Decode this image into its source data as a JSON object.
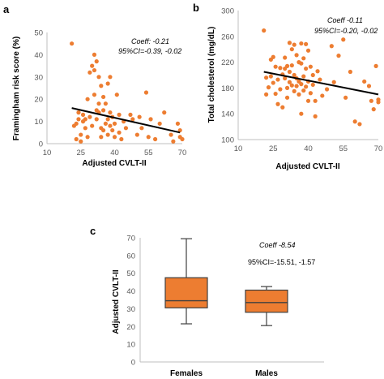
{
  "colors": {
    "point": "#ED7D31",
    "box_fill": "#ED7D31",
    "box_stroke": "#404040",
    "trend": "#000000"
  },
  "chart_data": [
    {
      "panel_label": "a",
      "type": "scatter",
      "xlabel": "Adjusted CVLT-II",
      "ylabel": "Framingham risk score (%)",
      "xlim": [
        10,
        70
      ],
      "ylim": [
        0,
        50
      ],
      "xticks": [
        10,
        25,
        40,
        55,
        70
      ],
      "yticks": [
        0,
        10,
        20,
        30,
        40,
        50
      ],
      "annotation": [
        "Coeff: -0.21",
        "95%CI=-0.39, -0.02"
      ],
      "trendline": {
        "x": [
          21,
          69
        ],
        "y": [
          16,
          5
        ]
      },
      "points": [
        [
          21,
          45
        ],
        [
          22,
          8
        ],
        [
          23,
          2
        ],
        [
          23,
          9
        ],
        [
          24,
          14
        ],
        [
          24,
          11
        ],
        [
          25,
          4
        ],
        [
          25,
          1
        ],
        [
          26,
          10
        ],
        [
          26,
          13
        ],
        [
          27,
          7
        ],
        [
          27,
          11
        ],
        [
          28,
          20
        ],
        [
          28,
          3
        ],
        [
          29,
          32
        ],
        [
          29,
          12
        ],
        [
          30,
          35
        ],
        [
          30,
          8
        ],
        [
          31,
          40
        ],
        [
          31,
          33
        ],
        [
          31,
          22
        ],
        [
          32,
          37
        ],
        [
          32,
          15
        ],
        [
          32,
          11
        ],
        [
          33,
          30
        ],
        [
          33,
          18
        ],
        [
          33,
          14
        ],
        [
          34,
          26
        ],
        [
          34,
          7
        ],
        [
          34,
          3
        ],
        [
          35,
          21
        ],
        [
          35,
          15
        ],
        [
          35,
          6
        ],
        [
          36,
          18
        ],
        [
          36,
          9
        ],
        [
          37,
          27
        ],
        [
          37,
          11
        ],
        [
          37,
          4
        ],
        [
          38,
          30
        ],
        [
          38,
          14
        ],
        [
          38,
          8
        ],
        [
          39,
          6
        ],
        [
          39,
          12
        ],
        [
          40,
          3
        ],
        [
          40,
          9
        ],
        [
          41,
          22
        ],
        [
          42,
          13
        ],
        [
          42,
          5
        ],
        [
          43,
          2
        ],
        [
          44,
          10
        ],
        [
          45,
          7
        ],
        [
          47,
          13
        ],
        [
          48,
          11
        ],
        [
          50,
          4
        ],
        [
          51,
          12
        ],
        [
          52,
          7
        ],
        [
          54,
          23
        ],
        [
          55,
          3
        ],
        [
          56,
          11
        ],
        [
          58,
          2
        ],
        [
          60,
          9
        ],
        [
          62,
          14
        ],
        [
          65,
          4
        ],
        [
          66,
          1
        ],
        [
          68,
          9
        ],
        [
          69,
          6
        ],
        [
          69,
          3
        ],
        [
          70,
          2
        ]
      ]
    },
    {
      "panel_label": "b",
      "type": "scatter",
      "xlabel": "Adjusted CVLT-II",
      "ylabel": "Total cholesterol (mg/dL)",
      "xlim": [
        10,
        70
      ],
      "ylim": [
        100,
        300
      ],
      "xticks": [
        10,
        25,
        40,
        55,
        70
      ],
      "yticks": [
        100,
        140,
        180,
        220,
        260,
        300
      ],
      "annotation": [
        "Coeff -0.11",
        "95%CI=-0.20, -0.02"
      ],
      "trendline": {
        "x": [
          21,
          70
        ],
        "y": [
          205,
          170
        ]
      },
      "points": [
        [
          21,
          269
        ],
        [
          22,
          196
        ],
        [
          22,
          170
        ],
        [
          23,
          181
        ],
        [
          24,
          224
        ],
        [
          24,
          198
        ],
        [
          25,
          228
        ],
        [
          25,
          188
        ],
        [
          26,
          213
        ],
        [
          26,
          171
        ],
        [
          27,
          155
        ],
        [
          27,
          193
        ],
        [
          28,
          211
        ],
        [
          28,
          178
        ],
        [
          29,
          201
        ],
        [
          29,
          150
        ],
        [
          30,
          227
        ],
        [
          30,
          210
        ],
        [
          30,
          195
        ],
        [
          31,
          214
        ],
        [
          31,
          180
        ],
        [
          31,
          165
        ],
        [
          32,
          250
        ],
        [
          32,
          205
        ],
        [
          32,
          189
        ],
        [
          33,
          240
        ],
        [
          33,
          215
        ],
        [
          33,
          184
        ],
        [
          34,
          247
        ],
        [
          34,
          200
        ],
        [
          34,
          175
        ],
        [
          35,
          231
        ],
        [
          35,
          195
        ],
        [
          35,
          183
        ],
        [
          36,
          220
        ],
        [
          36,
          190
        ],
        [
          36,
          170
        ],
        [
          37,
          249
        ],
        [
          37,
          218
        ],
        [
          37,
          186
        ],
        [
          37,
          140
        ],
        [
          38,
          226
        ],
        [
          38,
          198
        ],
        [
          38,
          176
        ],
        [
          39,
          248
        ],
        [
          39,
          210
        ],
        [
          39,
          182
        ],
        [
          40,
          238
        ],
        [
          40,
          190
        ],
        [
          40,
          160
        ],
        [
          41,
          213
        ],
        [
          41,
          172
        ],
        [
          42,
          200
        ],
        [
          42,
          185
        ],
        [
          43,
          136
        ],
        [
          43,
          160
        ],
        [
          44,
          206
        ],
        [
          45,
          193
        ],
        [
          46,
          168
        ],
        [
          48,
          178
        ],
        [
          50,
          245
        ],
        [
          51,
          189
        ],
        [
          53,
          230
        ],
        [
          55,
          255
        ],
        [
          56,
          165
        ],
        [
          58,
          205
        ],
        [
          60,
          128
        ],
        [
          62,
          124
        ],
        [
          64,
          190
        ],
        [
          66,
          183
        ],
        [
          67,
          160
        ],
        [
          68,
          147
        ],
        [
          69,
          214
        ],
        [
          70,
          162
        ],
        [
          70,
          158
        ]
      ]
    },
    {
      "panel_label": "c",
      "type": "box",
      "xlabel": "",
      "ylabel": "Adjusted CVLT-II",
      "ylim": [
        0,
        70
      ],
      "yticks": [
        0,
        10,
        20,
        30,
        40,
        50,
        60,
        70
      ],
      "categories": [
        "Females",
        "Males"
      ],
      "boxes": [
        {
          "category": "Females",
          "min": 21.5,
          "q1": 30.5,
          "median": 34.5,
          "q3": 47.5,
          "max": 69.5
        },
        {
          "category": "Males",
          "min": 20.5,
          "q1": 28,
          "median": 33.5,
          "q3": 40.5,
          "max": 42.5
        }
      ],
      "annotation": [
        "Coeff -8.54",
        "95%CI=-15.51, -1.57"
      ]
    }
  ]
}
